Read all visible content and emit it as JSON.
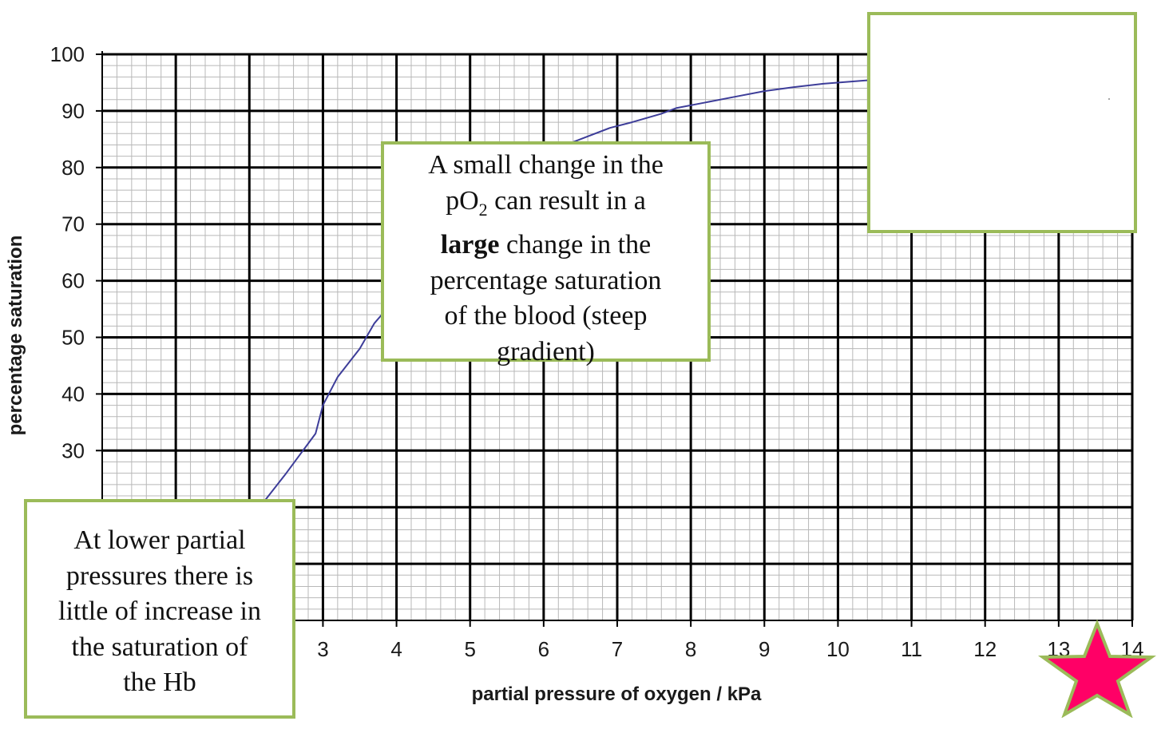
{
  "chart_data": {
    "type": "line",
    "xlabel": "partial pressure of oxygen / kPa",
    "ylabel": "percentage saturation",
    "xlim": [
      0,
      14
    ],
    "ylim": [
      0,
      100
    ],
    "x_ticks": [
      3,
      4,
      5,
      6,
      7,
      8,
      9,
      10,
      11,
      12,
      13,
      14
    ],
    "y_ticks": [
      30,
      40,
      50,
      60,
      70,
      80,
      90,
      100
    ],
    "grid": true,
    "line_color": "#3d3d99",
    "series": [
      {
        "x": [
          2.2,
          2.5,
          2.7,
          2.9,
          3.0,
          3.2,
          3.5,
          3.7,
          3.8,
          3.95,
          4.2,
          4.5,
          5.0,
          5.5,
          6.0,
          6.3,
          6.6,
          6.9,
          7.2,
          7.6,
          7.8,
          8.2,
          8.6,
          9.0,
          9.4,
          9.8,
          10.2,
          10.5
        ],
        "y": [
          21,
          26,
          29.5,
          33,
          38,
          43,
          48,
          52.5,
          54,
          56,
          60,
          65,
          72,
          78,
          82,
          84,
          85.5,
          87,
          88,
          89.5,
          90.5,
          91.5,
          92.5,
          93.5,
          94.2,
          94.8,
          95.2,
          95.5
        ]
      }
    ]
  },
  "callouts": {
    "steep": {
      "line1": "A small change in the",
      "line2_a": "pO",
      "line2_sub": "2",
      "line2_b": " can result in a",
      "line3_bold": "large",
      "line3_rest": " change in the",
      "line4": "percentage saturation",
      "line5": "of the blood (steep",
      "line6": "gradient)"
    },
    "low": {
      "line1": "At lower partial",
      "line2": "pressures there is",
      "line3": "little of increase in",
      "line4": "the saturation of",
      "line5": "the Hb"
    }
  },
  "colors": {
    "callout_border": "#9bbb59",
    "star_fill": "#ff0066",
    "star_border": "#9bbb59"
  },
  "icons": {
    "star": "star-icon"
  }
}
